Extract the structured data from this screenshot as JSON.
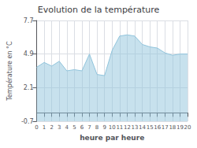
{
  "chart_data": {
    "type": "area",
    "title": "Evolution de la température",
    "xlabel": "heure par heure",
    "ylabel": "Température en °C",
    "x": [
      0,
      1,
      2,
      3,
      4,
      5,
      6,
      7,
      8,
      9,
      10,
      11,
      12,
      13,
      14,
      15,
      16,
      17,
      18,
      19,
      20
    ],
    "values": [
      3.8,
      4.2,
      3.9,
      4.3,
      3.5,
      3.6,
      3.5,
      4.9,
      3.2,
      3.1,
      5.2,
      6.4,
      6.5,
      6.4,
      5.7,
      5.5,
      5.4,
      5.0,
      4.8,
      4.9,
      4.9
    ],
    "color": "#90c4dc",
    "xlim": [
      0,
      20
    ],
    "xticks": [
      0,
      1,
      2,
      3,
      4,
      5,
      6,
      7,
      8,
      9,
      10,
      11,
      12,
      13,
      14,
      15,
      16,
      17,
      18,
      19,
      20
    ],
    "ylim": [
      -0.7,
      7.7
    ],
    "yticks": [
      -0.7,
      2.1,
      4.9,
      7.7
    ],
    "grid": true
  }
}
